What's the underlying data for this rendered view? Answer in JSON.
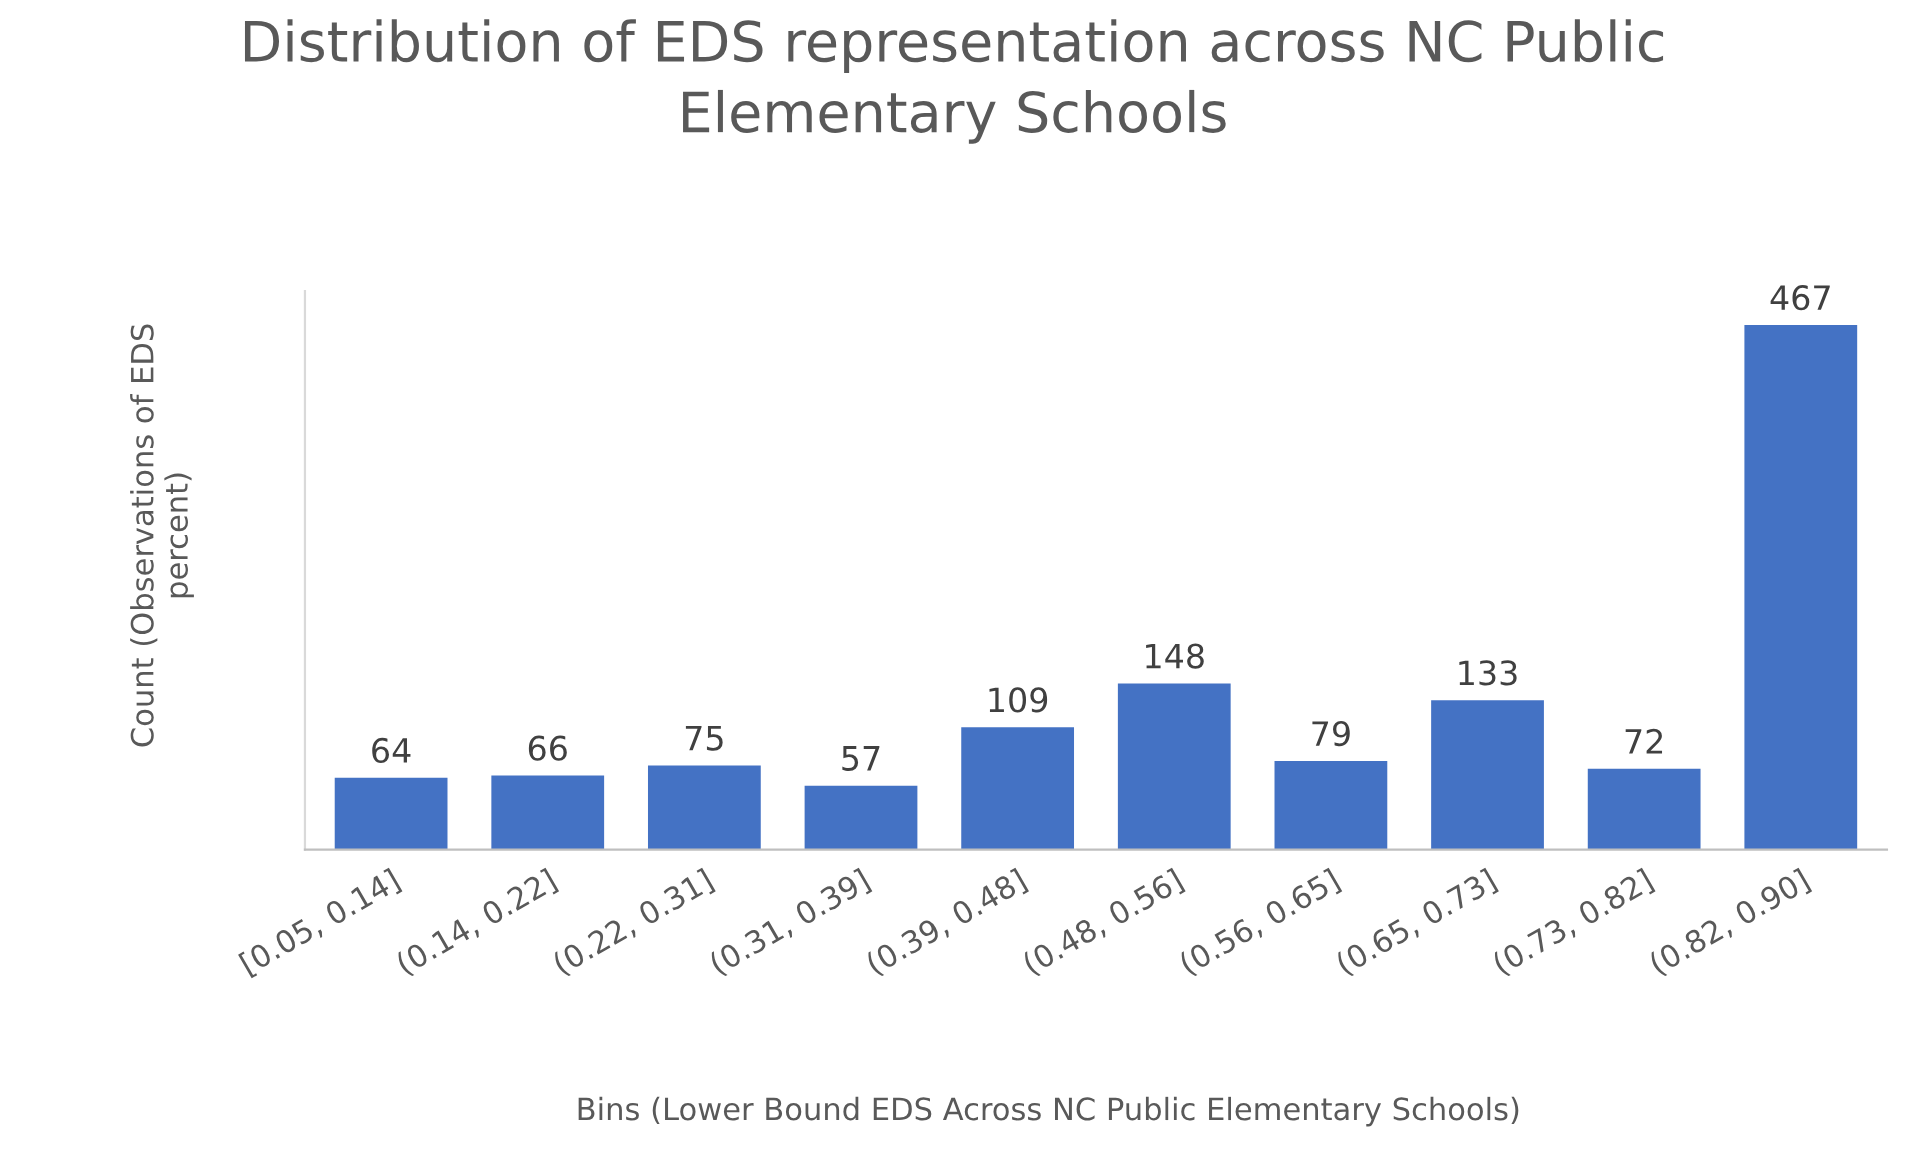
{
  "chart_data": {
    "type": "bar",
    "title": "Distribution of EDS representation across NC Public\nElementary Schools",
    "xlabel": "Bins (Lower Bound EDS Across NC Public Elementary Schools)",
    "ylabel": "Count (Observations of EDS\npercent)",
    "categories": [
      "[0.05, 0.14]",
      "(0.14, 0.22]",
      "(0.22, 0.31]",
      "(0.31, 0.39]",
      "(0.39, 0.48]",
      "(0.48, 0.56]",
      "(0.56, 0.65]",
      "(0.65, 0.73]",
      "(0.73, 0.82]",
      "(0.82, 0.90]"
    ],
    "values": [
      64,
      66,
      75,
      57,
      109,
      148,
      79,
      133,
      72,
      467
    ],
    "color": "#4472c4",
    "data_labels": true,
    "tick_labels": "x",
    "grid": false,
    "legend": false
  }
}
